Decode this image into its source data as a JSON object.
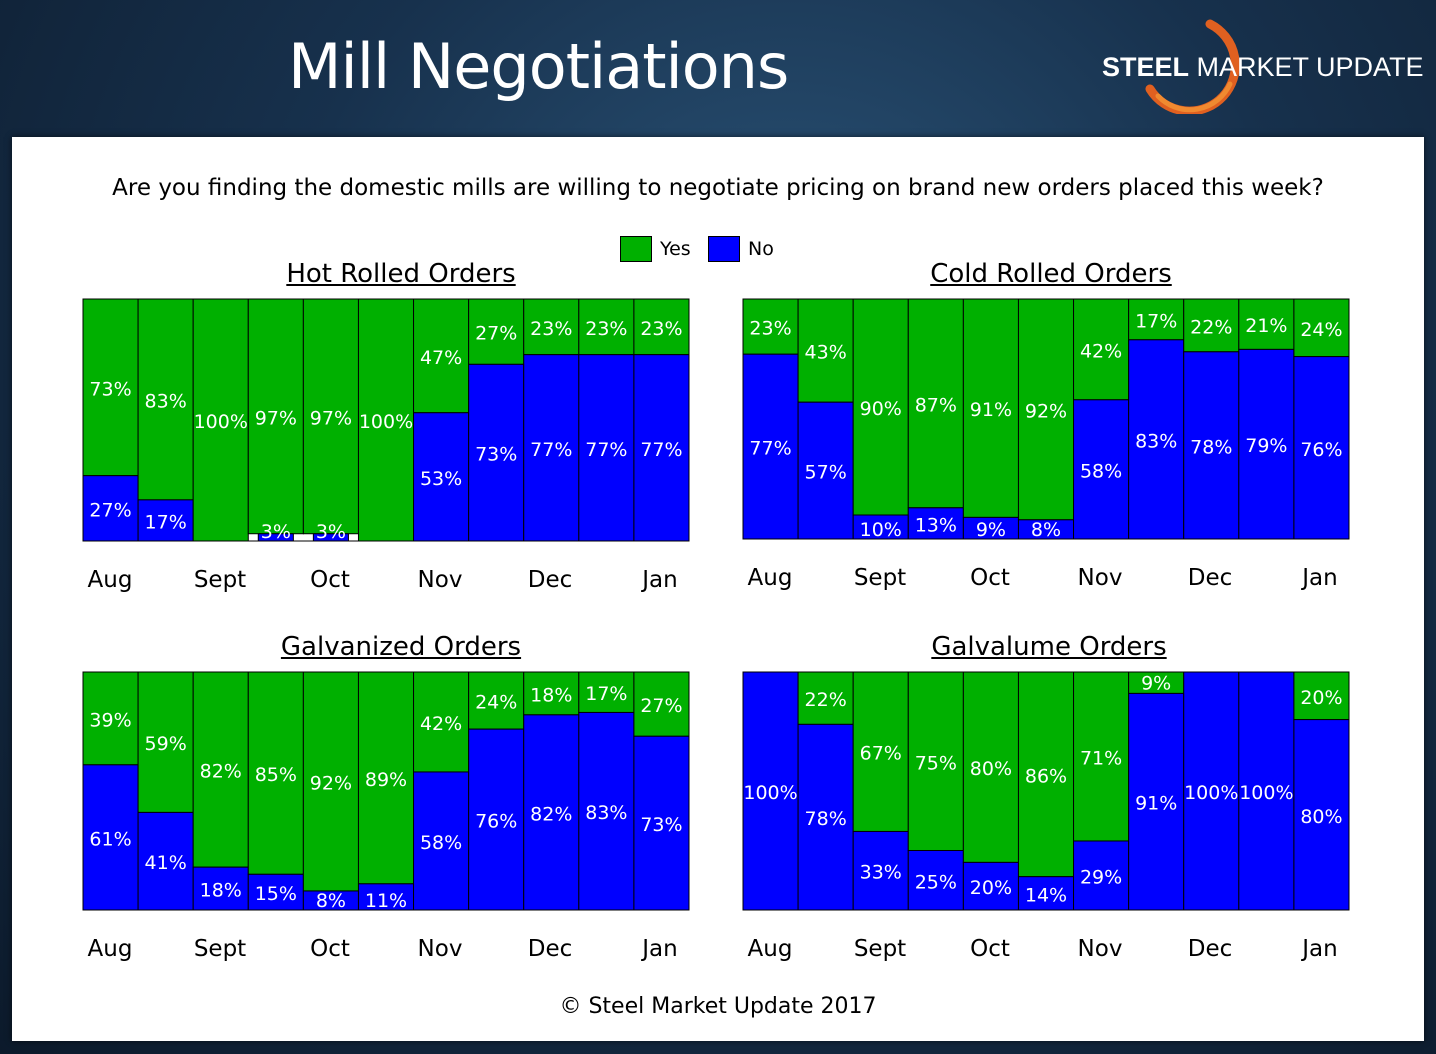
{
  "header": {
    "title": "Mill Negotiations"
  },
  "logo": {
    "bold_text": "STEEL",
    "text": "MARKET UPDATE"
  },
  "question": "Are you finding the domestic mills are willing to negotiate pricing on brand new orders placed this week?",
  "legend": [
    {
      "label": "Yes",
      "color": "#00b000"
    },
    {
      "label": "No",
      "color": "#0000ff"
    }
  ],
  "footer": "© Steel Market Update 2017",
  "chart_data": [
    {
      "type": "bar",
      "stacked": true,
      "title": "Hot Rolled Orders",
      "month_labels": [
        "Aug",
        "Sept",
        "Oct",
        "Nov",
        "Dec",
        "Jan"
      ],
      "ylim": [
        0,
        100
      ],
      "series": [
        {
          "name": "Yes",
          "values": [
            73,
            83,
            100,
            97,
            97,
            100,
            47,
            27,
            23,
            23,
            23
          ]
        },
        {
          "name": "No",
          "values": [
            27,
            17,
            0,
            3,
            3,
            0,
            53,
            73,
            77,
            77,
            77
          ]
        }
      ]
    },
    {
      "type": "bar",
      "stacked": true,
      "title": "Cold Rolled Orders",
      "month_labels": [
        "Aug",
        "Sept",
        "Oct",
        "Nov",
        "Dec",
        "Jan"
      ],
      "ylim": [
        0,
        100
      ],
      "series": [
        {
          "name": "Yes",
          "values": [
            23,
            43,
            90,
            87,
            91,
            92,
            42,
            17,
            22,
            21,
            24
          ]
        },
        {
          "name": "No",
          "values": [
            77,
            57,
            10,
            13,
            9,
            8,
            58,
            83,
            78,
            79,
            76
          ]
        }
      ]
    },
    {
      "type": "bar",
      "stacked": true,
      "title": "Galvanized Orders",
      "month_labels": [
        "Aug",
        "Sept",
        "Oct",
        "Nov",
        "Dec",
        "Jan"
      ],
      "ylim": [
        0,
        100
      ],
      "series": [
        {
          "name": "Yes",
          "values": [
            39,
            59,
            82,
            85,
            92,
            89,
            42,
            24,
            18,
            17,
            27
          ]
        },
        {
          "name": "No",
          "values": [
            61,
            41,
            18,
            15,
            8,
            11,
            58,
            76,
            82,
            83,
            73
          ]
        }
      ]
    },
    {
      "type": "bar",
      "stacked": true,
      "title": "Galvalume Orders",
      "month_labels": [
        "Aug",
        "Sept",
        "Oct",
        "Nov",
        "Dec",
        "Jan"
      ],
      "ylim": [
        0,
        100
      ],
      "series": [
        {
          "name": "Yes",
          "values": [
            0,
            22,
            67,
            75,
            80,
            86,
            71,
            9,
            0,
            0,
            20
          ]
        },
        {
          "name": "No",
          "values": [
            100,
            78,
            33,
            25,
            20,
            14,
            29,
            91,
            100,
            100,
            80
          ]
        }
      ]
    }
  ]
}
